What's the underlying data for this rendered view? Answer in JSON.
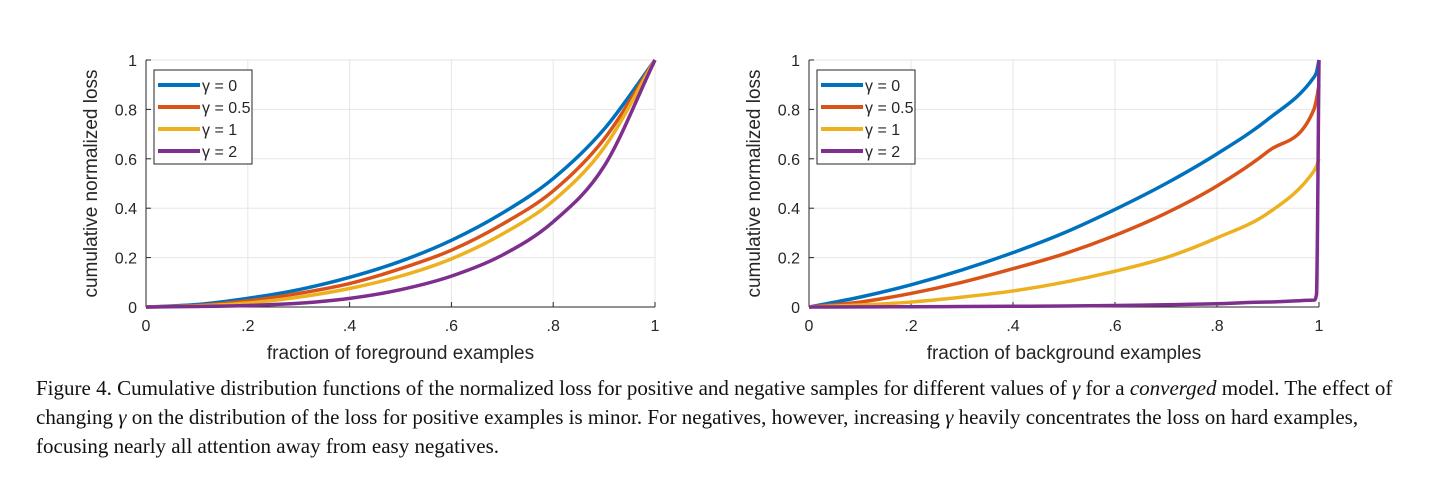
{
  "chart_data": [
    {
      "type": "line",
      "title": "",
      "xlabel": "fraction of foreground examples",
      "ylabel": "cumulative normalized loss",
      "xlim": [
        0,
        1
      ],
      "ylim": [
        0,
        1
      ],
      "xticks": [
        0,
        0.2,
        0.4,
        0.6,
        0.8,
        1
      ],
      "xtick_labels": [
        "0",
        ".2",
        ".4",
        ".6",
        ".8",
        "1"
      ],
      "yticks": [
        0,
        0.2,
        0.4,
        0.6,
        0.8,
        1
      ],
      "ytick_labels": [
        "0",
        "0.2",
        "0.4",
        "0.6",
        "0.8",
        "1"
      ],
      "grid": true,
      "legend_position": "top-left",
      "x": [
        0,
        0.1,
        0.2,
        0.3,
        0.4,
        0.5,
        0.6,
        0.7,
        0.8,
        0.9,
        1
      ],
      "series": [
        {
          "name": "γ = 0",
          "color": "#0072BD",
          "values": [
            0,
            0.01,
            0.035,
            0.07,
            0.12,
            0.185,
            0.27,
            0.38,
            0.52,
            0.72,
            1
          ]
        },
        {
          "name": "γ = 0.5",
          "color": "#D95319",
          "values": [
            0,
            0.006,
            0.025,
            0.055,
            0.095,
            0.155,
            0.23,
            0.335,
            0.47,
            0.68,
            1
          ]
        },
        {
          "name": "γ = 1",
          "color": "#EDB120",
          "values": [
            0,
            0.004,
            0.016,
            0.04,
            0.075,
            0.125,
            0.195,
            0.295,
            0.43,
            0.645,
            1
          ]
        },
        {
          "name": "γ = 2",
          "color": "#7E2F8E",
          "values": [
            0,
            0.002,
            0.006,
            0.015,
            0.035,
            0.07,
            0.125,
            0.21,
            0.345,
            0.57,
            1
          ]
        }
      ]
    },
    {
      "type": "line",
      "title": "",
      "xlabel": "fraction of background examples",
      "ylabel": "cumulative normalized loss",
      "xlim": [
        0,
        1
      ],
      "ylim": [
        0,
        1
      ],
      "xticks": [
        0,
        0.2,
        0.4,
        0.6,
        0.8,
        1
      ],
      "xtick_labels": [
        "0",
        ".2",
        ".4",
        ".6",
        ".8",
        "1"
      ],
      "yticks": [
        0,
        0.2,
        0.4,
        0.6,
        0.8,
        1
      ],
      "ytick_labels": [
        "0",
        "0.2",
        "0.4",
        "0.6",
        "0.8",
        "1"
      ],
      "grid": true,
      "legend_position": "top-left",
      "x": [
        0,
        0.1,
        0.2,
        0.3,
        0.4,
        0.5,
        0.6,
        0.7,
        0.8,
        0.9,
        0.99,
        0.995,
        1
      ],
      "series": [
        {
          "name": "γ = 0",
          "color": "#0072BD",
          "values": [
            0,
            0.04,
            0.09,
            0.15,
            0.22,
            0.3,
            0.395,
            0.5,
            0.62,
            0.76,
            0.93,
            0.95,
            1
          ]
        },
        {
          "name": "γ = 0.5",
          "color": "#D95319",
          "values": [
            0,
            0.02,
            0.055,
            0.1,
            0.155,
            0.215,
            0.29,
            0.38,
            0.49,
            0.63,
            0.8,
            0.84,
            0.9
          ]
        },
        {
          "name": "γ = 1",
          "color": "#EDB120",
          "values": [
            0,
            0.008,
            0.02,
            0.04,
            0.065,
            0.1,
            0.145,
            0.2,
            0.28,
            0.38,
            0.55,
            0.57,
            0.6
          ]
        },
        {
          "name": "γ = 2",
          "color": "#7E2F8E",
          "values": [
            0,
            0.0005,
            0.001,
            0.002,
            0.003,
            0.004,
            0.006,
            0.009,
            0.013,
            0.02,
            0.028,
            0.05,
            1
          ]
        }
      ]
    }
  ],
  "caption": {
    "label": "Figure 4.",
    "part1": " Cumulative distribution functions of the normalized loss for positive and negative samples for different values of ",
    "gamma1": "γ",
    "part2": " for a ",
    "emphasis": "converged",
    "part3": " model.  The effect of changing ",
    "gamma2": "γ",
    "part4": " on the distribution of the loss for positive examples is minor. For negatives, however, increasing ",
    "gamma3": "γ",
    "part5": " heavily concentrates the loss on hard examples, focusing nearly all attention away from easy negatives."
  }
}
